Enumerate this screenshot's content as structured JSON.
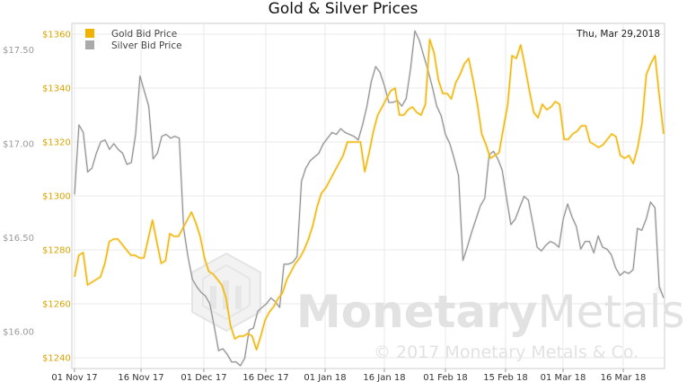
{
  "chart_data": {
    "type": "line",
    "title": "Gold & Silver Prices",
    "date_label": "Thu, Mar 29,2018",
    "legend_position": "top-left",
    "grid": true,
    "x_ticks": [
      "01 Nov 17",
      "16 Nov 17",
      "01 Dec 17",
      "16 Dec 17",
      "01 Jan 18",
      "16 Jan 18",
      "01 Feb 18",
      "15 Feb 18",
      "01 Mar 18",
      "16 Mar 18"
    ],
    "gold_axis": {
      "ticks": [
        "$1240",
        "$1260",
        "$1280",
        "$1300",
        "$1320",
        "$1340",
        "$1360"
      ],
      "range": [
        1236,
        1364
      ]
    },
    "silver_axis": {
      "ticks": [
        "$16.00",
        "$16.50",
        "$17.00",
        "$17.50"
      ],
      "range": [
        15.805,
        17.64
      ]
    },
    "series": [
      {
        "name": "Gold Bid Price",
        "color": "#f0b400",
        "axis": "gold",
        "values": [
          1270,
          1278,
          1279,
          1267,
          1268,
          1269,
          1270,
          1275,
          1283,
          1284,
          1284,
          1282,
          1280,
          1278,
          1278,
          1277,
          1277,
          1284,
          1291,
          1283,
          1275,
          1276,
          1286,
          1285,
          1285,
          1288,
          1291,
          1294,
          1290,
          1285,
          1277,
          1272,
          1271,
          1269,
          1267,
          1262,
          1252,
          1247,
          1248,
          1248,
          1249,
          1248,
          1243,
          1248,
          1254,
          1257,
          1259,
          1262,
          1264,
          1269,
          1272,
          1275,
          1277,
          1280,
          1284,
          1289,
          1296,
          1301,
          1303,
          1306,
          1309,
          1312,
          1315,
          1320,
          1320,
          1320,
          1320,
          1309,
          1316,
          1324,
          1330,
          1333,
          1336,
          1339,
          1340,
          1330,
          1330,
          1332,
          1333,
          1331,
          1330,
          1334,
          1358,
          1353,
          1343,
          1338,
          1338,
          1336,
          1342,
          1345,
          1349,
          1351,
          1343,
          1334,
          1323,
          1319,
          1314,
          1315,
          1316,
          1325,
          1334,
          1352,
          1351,
          1356,
          1348,
          1339,
          1331,
          1329,
          1334,
          1332,
          1333,
          1335,
          1334,
          1321,
          1321,
          1323,
          1324,
          1326,
          1326,
          1320,
          1319,
          1318,
          1319,
          1321,
          1323,
          1322,
          1315,
          1314,
          1315,
          1312,
          1318,
          1327,
          1345,
          1349,
          1352,
          1337,
          1323
        ]
      },
      {
        "name": "Silver Bid Price",
        "color": "#b0b0b0",
        "axis": "silver",
        "values": [
          16.73,
          17.1,
          17.06,
          16.85,
          16.87,
          16.95,
          17.01,
          17.02,
          16.97,
          17.0,
          16.97,
          16.95,
          16.89,
          16.9,
          17.05,
          17.36,
          17.28,
          17.2,
          16.92,
          16.95,
          17.04,
          17.05,
          17.03,
          17.04,
          17.03,
          16.55,
          16.4,
          16.28,
          16.24,
          16.21,
          16.19,
          16.15,
          16.03,
          15.9,
          15.91,
          15.88,
          15.84,
          15.84,
          15.82,
          15.86,
          16.01,
          16.02,
          16.11,
          16.13,
          16.15,
          16.18,
          16.16,
          16.13,
          16.36,
          16.36,
          16.37,
          16.4,
          16.8,
          16.87,
          16.91,
          16.93,
          16.95,
          17.0,
          17.03,
          17.06,
          17.05,
          17.08,
          17.06,
          17.05,
          17.04,
          17.02,
          17.1,
          17.2,
          17.33,
          17.41,
          17.38,
          17.31,
          17.22,
          17.22,
          17.23,
          17.2,
          17.24,
          17.4,
          17.6,
          17.55,
          17.47,
          17.39,
          17.3,
          17.2,
          17.15,
          17.05,
          17.0,
          16.92,
          16.83,
          16.38,
          16.45,
          16.53,
          16.6,
          16.67,
          16.71,
          16.94,
          16.96,
          16.92,
          16.86,
          16.71,
          16.57,
          16.6,
          16.66,
          16.72,
          16.7,
          16.58,
          16.45,
          16.43,
          16.46,
          16.48,
          16.47,
          16.45,
          16.6,
          16.68,
          16.61,
          16.56,
          16.44,
          16.48,
          16.48,
          16.42,
          16.51,
          16.45,
          16.44,
          16.41,
          16.34,
          16.3,
          16.32,
          16.31,
          16.33,
          16.55,
          16.54,
          16.6,
          16.69,
          16.66,
          16.24,
          16.18
        ]
      }
    ]
  },
  "watermark": {
    "brand_bold": "Monetary",
    "brand_light": "Metals",
    "registered": "®",
    "copyright": "© 2017 Monetary Metals & Co."
  }
}
